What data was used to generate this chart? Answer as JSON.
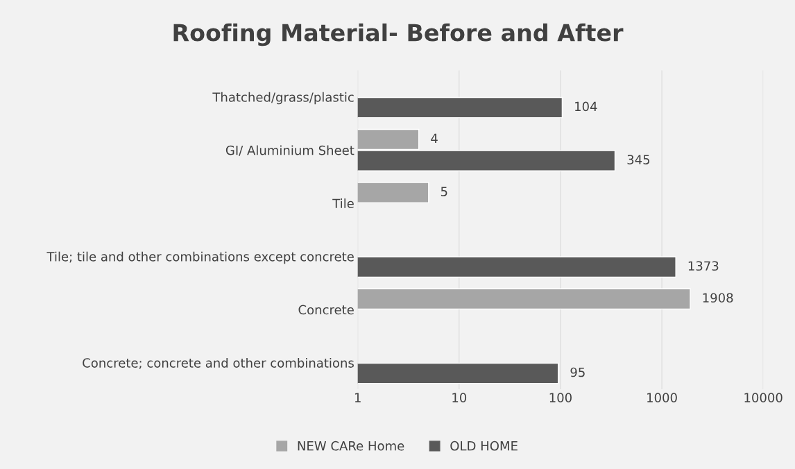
{
  "chart_data": {
    "type": "bar",
    "orientation": "horizontal",
    "title": "Roofing Material- Before and After",
    "categories": [
      "Thatched/grass/plastic",
      "GI/ Aluminium Sheet",
      "Tile",
      "Tile; tile and other combinations except concrete",
      "Concrete",
      "Concrete; concrete and other combinations"
    ],
    "series": [
      {
        "name": "NEW CARe Home",
        "color": "#a6a6a6",
        "values": [
          null,
          4,
          5,
          null,
          1908,
          null
        ]
      },
      {
        "name": "OLD HOME",
        "color": "#595959",
        "values": [
          104,
          345,
          null,
          1373,
          null,
          95
        ]
      }
    ],
    "log": "x",
    "xlim": [
      1,
      10000
    ],
    "xticks": [
      1,
      10,
      100,
      1000,
      10000
    ],
    "grid": "x",
    "legend": "bottom",
    "data_labels": true
  }
}
